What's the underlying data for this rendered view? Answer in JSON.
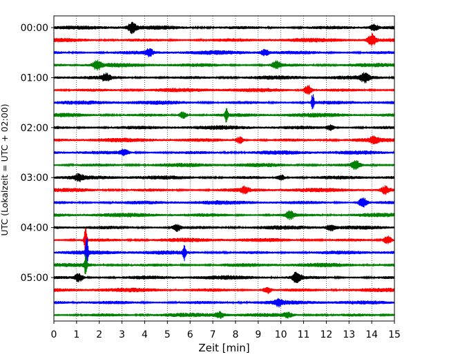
{
  "chart_data": {
    "type": "line",
    "title": "",
    "xlabel": "Zeit  [min]",
    "ylabel": "UTC (Lokalzeit = UTC + 02:00)",
    "xlim": [
      0,
      15
    ],
    "x_ticks": [
      0,
      1,
      2,
      3,
      4,
      5,
      6,
      7,
      8,
      9,
      10,
      11,
      12,
      13,
      14,
      15
    ],
    "x_tick_labels": [
      "0",
      "1",
      "2",
      "3",
      "4",
      "5",
      "6",
      "7",
      "8",
      "9",
      "10",
      "11",
      "12",
      "13",
      "14",
      "15"
    ],
    "y_tick_labels": [
      "00:00",
      "01:00",
      "02:00",
      "03:00",
      "04:00",
      "05:00"
    ],
    "trace_minutes": 15,
    "trace_count": 24,
    "trace_colors": [
      "#000000",
      "#ff0000",
      "#0000ff",
      "#008000"
    ],
    "grid": "vertical dotted",
    "series": [
      {
        "start": "00:00",
        "color": "#000000",
        "events": [
          {
            "t": 3.45,
            "amp": 7
          },
          {
            "t": 14.1,
            "amp": 4
          }
        ]
      },
      {
        "start": "00:15",
        "color": "#ff0000",
        "events": [
          {
            "t": 14.0,
            "amp": 8
          }
        ]
      },
      {
        "start": "00:30",
        "color": "#0000ff",
        "events": [
          {
            "t": 4.2,
            "amp": 5
          },
          {
            "t": 9.3,
            "amp": 4
          }
        ]
      },
      {
        "start": "00:45",
        "color": "#008000",
        "events": [
          {
            "t": 1.9,
            "amp": 6
          },
          {
            "t": 9.8,
            "amp": 5
          }
        ]
      },
      {
        "start": "01:00",
        "color": "#000000",
        "events": [
          {
            "t": 2.3,
            "amp": 5
          },
          {
            "t": 13.7,
            "amp": 6
          }
        ]
      },
      {
        "start": "01:15",
        "color": "#ff0000",
        "events": [
          {
            "t": 11.2,
            "amp": 7
          }
        ]
      },
      {
        "start": "01:30",
        "color": "#0000ff",
        "events": [
          {
            "t": 11.4,
            "amp": 13
          }
        ]
      },
      {
        "start": "01:45",
        "color": "#008000",
        "events": [
          {
            "t": 5.7,
            "amp": 5
          },
          {
            "t": 7.6,
            "amp": 11
          }
        ]
      },
      {
        "start": "02:00",
        "color": "#000000",
        "events": [
          {
            "t": 12.2,
            "amp": 4
          }
        ]
      },
      {
        "start": "02:15",
        "color": "#ff0000",
        "events": [
          {
            "t": 8.2,
            "amp": 5
          },
          {
            "t": 14.1,
            "amp": 4
          }
        ]
      },
      {
        "start": "02:30",
        "color": "#0000ff",
        "events": [
          {
            "t": 3.1,
            "amp": 4
          }
        ]
      },
      {
        "start": "02:45",
        "color": "#008000",
        "events": [
          {
            "t": 13.3,
            "amp": 6
          }
        ]
      },
      {
        "start": "03:00",
        "color": "#000000",
        "events": [
          {
            "t": 1.1,
            "amp": 4
          },
          {
            "t": 10.0,
            "amp": 4
          }
        ]
      },
      {
        "start": "03:15",
        "color": "#ff0000",
        "events": [
          {
            "t": 8.4,
            "amp": 4
          },
          {
            "t": 14.6,
            "amp": 5
          }
        ]
      },
      {
        "start": "03:30",
        "color": "#0000ff",
        "events": [
          {
            "t": 13.6,
            "amp": 8
          }
        ]
      },
      {
        "start": "03:45",
        "color": "#008000",
        "events": [
          {
            "t": 10.4,
            "amp": 5
          }
        ]
      },
      {
        "start": "04:00",
        "color": "#000000",
        "events": [
          {
            "t": 5.4,
            "amp": 5
          },
          {
            "t": 12.2,
            "amp": 4
          }
        ]
      },
      {
        "start": "04:15",
        "color": "#ff0000",
        "events": [
          {
            "t": 1.4,
            "amp": 20
          },
          {
            "t": 14.7,
            "amp": 6
          }
        ]
      },
      {
        "start": "04:30",
        "color": "#0000ff",
        "events": [
          {
            "t": 1.45,
            "amp": 22
          },
          {
            "t": 5.75,
            "amp": 11
          }
        ]
      },
      {
        "start": "04:45",
        "color": "#008000",
        "events": [
          {
            "t": 1.4,
            "amp": 14
          }
        ]
      },
      {
        "start": "05:00",
        "color": "#000000",
        "events": [
          {
            "t": 1.1,
            "amp": 6
          },
          {
            "t": 10.7,
            "amp": 8
          }
        ]
      },
      {
        "start": "05:15",
        "color": "#ff0000",
        "events": [
          {
            "t": 9.4,
            "amp": 5
          }
        ]
      },
      {
        "start": "05:30",
        "color": "#0000ff",
        "events": [
          {
            "t": 9.9,
            "amp": 4
          }
        ]
      },
      {
        "start": "05:45",
        "color": "#008000",
        "events": [
          {
            "t": 7.3,
            "amp": 4
          },
          {
            "t": 10.3,
            "amp": 3
          }
        ]
      }
    ]
  }
}
